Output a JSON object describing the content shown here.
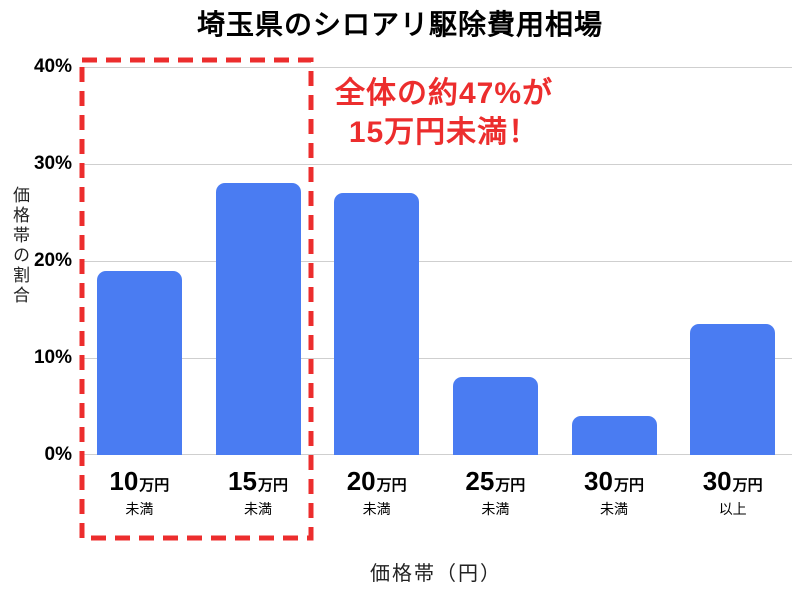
{
  "chart_data": {
    "type": "bar",
    "title": "埼玉県のシロアリ駆除費用相場",
    "ylabel": "価格帯の割合",
    "xlabel": "価格帯（円）",
    "ylim": [
      0,
      40
    ],
    "ytick_labels": [
      "40%",
      "30%",
      "20%",
      "10%",
      "0%"
    ],
    "grid": true,
    "legend": "none",
    "categories": [
      "10万円未満",
      "15万円未満",
      "20万円未満",
      "25万円未満",
      "30万円未満",
      "30万円以上"
    ],
    "x_tick_labels": [
      {
        "num": "10",
        "unit": "万円",
        "sub": "未満"
      },
      {
        "num": "15",
        "unit": "万円",
        "sub": "未満"
      },
      {
        "num": "20",
        "unit": "万円",
        "sub": "未満"
      },
      {
        "num": "25",
        "unit": "万円",
        "sub": "未満"
      },
      {
        "num": "30",
        "unit": "万円",
        "sub": "未満"
      },
      {
        "num": "30",
        "unit": "万円",
        "sub": "以上"
      }
    ],
    "values": [
      19,
      28,
      27,
      8,
      4,
      13.5
    ],
    "annotation": {
      "line1": "全体の約47%が",
      "line2": "15万円未満！"
    },
    "highlight": {
      "style": "red-dashed-box",
      "covers_categories": [
        "10万円未満",
        "15万円未満"
      ]
    },
    "colors": {
      "bar": "#4a7cf2",
      "grid": "#cfcfcf",
      "highlight": "#ec2d2d",
      "annotation_text": "#ec2d2d",
      "background": "#ffffff",
      "text": "#000000"
    }
  }
}
